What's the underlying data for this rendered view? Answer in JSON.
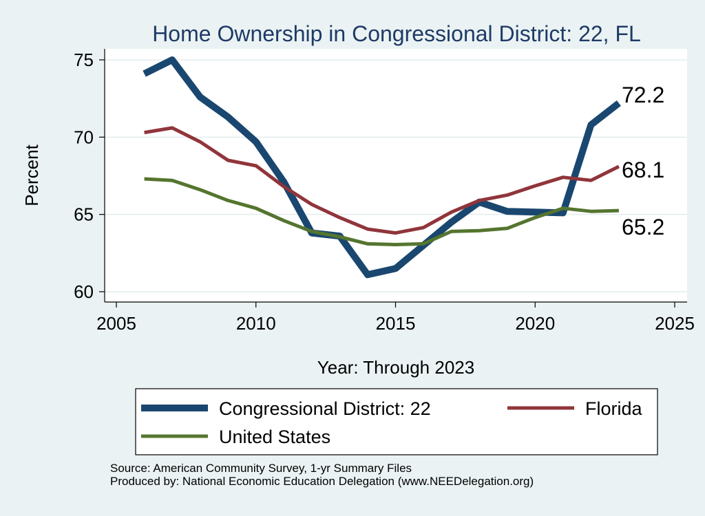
{
  "chart_data": {
    "type": "line",
    "title": "Home Ownership in Congressional District:  22, FL",
    "xlabel": "Year: Through 2023",
    "ylabel": "Percent",
    "xlim": [
      2005,
      2025
    ],
    "ylim": [
      60,
      75
    ],
    "xticks": [
      2005,
      2010,
      2015,
      2020,
      2025
    ],
    "yticks": [
      60,
      65,
      70,
      75
    ],
    "grid": "horizontal",
    "legend_position": "bottom",
    "x": [
      2006,
      2007,
      2008,
      2009,
      2010,
      2011,
      2012,
      2013,
      2014,
      2015,
      2016,
      2017,
      2018,
      2019,
      2020,
      2021,
      2022,
      2023
    ],
    "series": [
      {
        "name": "Congressional District:  22",
        "color": "#1a476f",
        "values": [
          74.1,
          75.0,
          72.6,
          71.3,
          69.7,
          67.1,
          63.8,
          63.6,
          61.1,
          61.5,
          63.0,
          64.5,
          65.8,
          65.2,
          65.15,
          65.1,
          70.8,
          72.2
        ],
        "end_label": "72.2"
      },
      {
        "name": "Florida",
        "color": "#90353b",
        "values": [
          70.3,
          70.6,
          69.7,
          68.5,
          68.15,
          66.8,
          65.65,
          64.8,
          64.05,
          63.8,
          64.15,
          65.15,
          65.9,
          66.25,
          66.85,
          67.4,
          67.2,
          68.1
        ],
        "end_label": "68.1"
      },
      {
        "name": "United States",
        "color": "#55752f",
        "values": [
          67.3,
          67.2,
          66.6,
          65.9,
          65.4,
          64.6,
          63.9,
          63.55,
          63.1,
          63.05,
          63.1,
          63.9,
          63.95,
          64.1,
          64.8,
          65.4,
          65.2,
          65.25
        ],
        "end_label": "65.2"
      }
    ]
  },
  "footer": {
    "source": "Source: American Community Survey, 1-yr Summary Files",
    "produced_by": "Produced by: National Economic Education Delegation (www.NEEDelegation.org)"
  }
}
